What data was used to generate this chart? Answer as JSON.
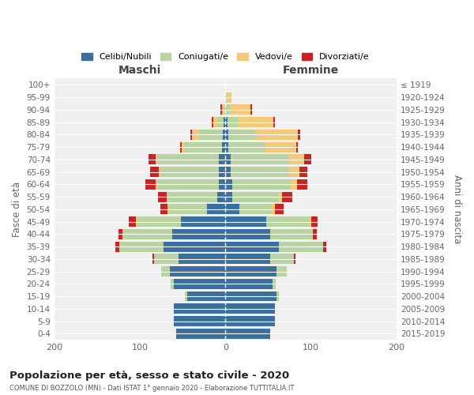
{
  "age_groups": [
    "0-4",
    "5-9",
    "10-14",
    "15-19",
    "20-24",
    "25-29",
    "30-34",
    "35-39",
    "40-44",
    "45-49",
    "50-54",
    "55-59",
    "60-64",
    "65-69",
    "70-74",
    "75-79",
    "80-84",
    "85-89",
    "90-94",
    "95-99",
    "100+"
  ],
  "birth_years": [
    "2015-2019",
    "2010-2014",
    "2005-2009",
    "2000-2004",
    "1995-1999",
    "1990-1994",
    "1985-1989",
    "1980-1984",
    "1975-1979",
    "1970-1974",
    "1965-1969",
    "1960-1964",
    "1955-1959",
    "1950-1954",
    "1945-1949",
    "1940-1944",
    "1935-1939",
    "1930-1934",
    "1925-1929",
    "1920-1924",
    "≤ 1919"
  ],
  "male": {
    "celibi": [
      58,
      60,
      60,
      45,
      60,
      65,
      55,
      72,
      62,
      52,
      22,
      10,
      8,
      8,
      8,
      4,
      3,
      2,
      0,
      0,
      0
    ],
    "coniugati": [
      0,
      0,
      0,
      2,
      4,
      10,
      28,
      52,
      58,
      52,
      45,
      58,
      72,
      68,
      72,
      44,
      28,
      8,
      2,
      0,
      0
    ],
    "vedovi": [
      0,
      0,
      0,
      0,
      0,
      0,
      0,
      0,
      0,
      1,
      1,
      1,
      2,
      2,
      2,
      3,
      8,
      4,
      2,
      0,
      0
    ],
    "divorziati": [
      0,
      0,
      0,
      0,
      0,
      0,
      2,
      5,
      5,
      8,
      8,
      10,
      12,
      10,
      8,
      2,
      2,
      2,
      2,
      0,
      0
    ]
  },
  "female": {
    "nubili": [
      52,
      58,
      58,
      60,
      55,
      60,
      52,
      62,
      52,
      48,
      16,
      8,
      8,
      6,
      6,
      3,
      3,
      2,
      0,
      0,
      0
    ],
    "coniugate": [
      0,
      0,
      0,
      2,
      4,
      12,
      28,
      52,
      50,
      50,
      38,
      54,
      68,
      68,
      68,
      44,
      32,
      12,
      5,
      2,
      0
    ],
    "vedove": [
      0,
      0,
      0,
      0,
      0,
      0,
      0,
      0,
      0,
      2,
      4,
      4,
      8,
      12,
      18,
      36,
      50,
      42,
      24,
      5,
      0
    ],
    "divorziate": [
      0,
      0,
      0,
      0,
      0,
      0,
      2,
      4,
      5,
      8,
      10,
      12,
      12,
      10,
      8,
      2,
      2,
      2,
      2,
      0,
      0
    ]
  },
  "colors": {
    "celibi": "#3b6fa0",
    "coniugati": "#b8d4a0",
    "vedovi": "#f5c97a",
    "divorziati": "#cc2222"
  },
  "title": "Popolazione per età, sesso e stato civile - 2020",
  "subtitle": "COMUNE DI BOZZOLO (MN) - Dati ISTAT 1° gennaio 2020 - Elaborazione TUTTITALIA.IT",
  "xlabel_left": "Maschi",
  "xlabel_right": "Femmine",
  "ylabel_left": "Fasce di età",
  "ylabel_right": "Anni di nascita",
  "xlim": 200,
  "legend_labels": [
    "Celibi/Nubili",
    "Coniugati/e",
    "Vedovi/e",
    "Divorziati/e"
  ],
  "background_color": "#ffffff",
  "plot_bg_color": "#f0f0f0",
  "grid_color": "#ffffff"
}
